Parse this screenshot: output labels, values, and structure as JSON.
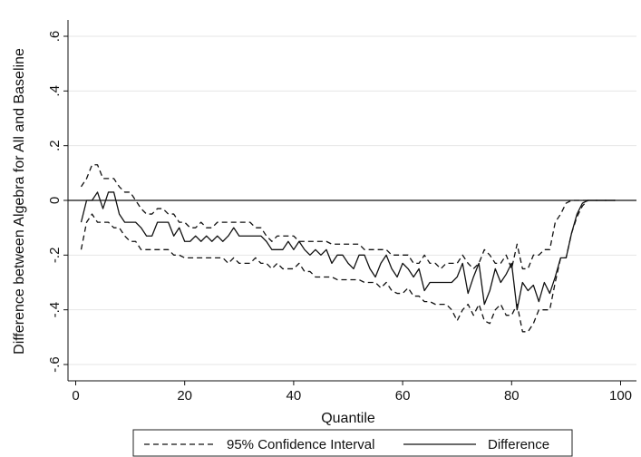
{
  "chart_data": {
    "type": "line",
    "xlabel": "Quantile",
    "ylabel": "Difference between Algebra for All and Baseline",
    "xlim": [
      0,
      100
    ],
    "ylim": [
      -0.6,
      0.6
    ],
    "x_ticks": [
      0,
      20,
      40,
      60,
      80,
      100
    ],
    "x_tick_labels": [
      "0",
      "20",
      "40",
      "60",
      "80",
      "100"
    ],
    "y_ticks": [
      -0.6,
      -0.4,
      -0.2,
      0,
      0.2,
      0.4,
      0.6
    ],
    "y_tick_labels": [
      "-.6",
      "-.4",
      "-.2",
      "0",
      ".2",
      ".4",
      ".6"
    ],
    "grid": true,
    "reference_line_y": 0,
    "legend_position": "bottom",
    "x": [
      1,
      2,
      3,
      4,
      5,
      6,
      7,
      8,
      9,
      10,
      11,
      12,
      13,
      14,
      15,
      16,
      17,
      18,
      19,
      20,
      21,
      22,
      23,
      24,
      25,
      26,
      27,
      28,
      29,
      30,
      31,
      32,
      33,
      34,
      35,
      36,
      37,
      38,
      39,
      40,
      41,
      42,
      43,
      44,
      45,
      46,
      47,
      48,
      49,
      50,
      51,
      52,
      53,
      54,
      55,
      56,
      57,
      58,
      59,
      60,
      61,
      62,
      63,
      64,
      65,
      66,
      67,
      68,
      69,
      70,
      71,
      72,
      73,
      74,
      75,
      76,
      77,
      78,
      79,
      80,
      81,
      82,
      83,
      84,
      85,
      86,
      87,
      88,
      89,
      90,
      91,
      92,
      93,
      94,
      95,
      96,
      97,
      98,
      99
    ],
    "series": [
      {
        "name": "Difference",
        "style": "solid",
        "values": [
          -0.08,
          0.0,
          0.0,
          0.03,
          -0.03,
          0.03,
          0.03,
          -0.05,
          -0.08,
          -0.08,
          -0.08,
          -0.1,
          -0.13,
          -0.13,
          -0.08,
          -0.08,
          -0.08,
          -0.13,
          -0.1,
          -0.15,
          -0.15,
          -0.13,
          -0.15,
          -0.13,
          -0.15,
          -0.13,
          -0.15,
          -0.13,
          -0.1,
          -0.13,
          -0.13,
          -0.13,
          -0.13,
          -0.13,
          -0.15,
          -0.18,
          -0.18,
          -0.18,
          -0.15,
          -0.18,
          -0.15,
          -0.18,
          -0.2,
          -0.18,
          -0.2,
          -0.18,
          -0.23,
          -0.2,
          -0.2,
          -0.23,
          -0.25,
          -0.2,
          -0.2,
          -0.25,
          -0.28,
          -0.23,
          -0.2,
          -0.25,
          -0.28,
          -0.23,
          -0.25,
          -0.28,
          -0.25,
          -0.33,
          -0.3,
          -0.3,
          -0.3,
          -0.3,
          -0.3,
          -0.28,
          -0.23,
          -0.34,
          -0.28,
          -0.23,
          -0.38,
          -0.33,
          -0.25,
          -0.3,
          -0.27,
          -0.23,
          -0.4,
          -0.3,
          -0.33,
          -0.31,
          -0.37,
          -0.3,
          -0.34,
          -0.28,
          -0.21,
          -0.21,
          -0.12,
          -0.05,
          -0.01,
          0.0,
          0.0,
          0.0,
          0.0,
          0.0,
          0.0
        ]
      },
      {
        "name": "95% Confidence Interval",
        "style": "dashed",
        "values": [
          0.05,
          0.08,
          0.13,
          0.13,
          0.08,
          0.08,
          0.08,
          0.05,
          0.03,
          0.03,
          0.0,
          -0.03,
          -0.05,
          -0.05,
          -0.03,
          -0.03,
          -0.05,
          -0.05,
          -0.08,
          -0.08,
          -0.1,
          -0.1,
          -0.08,
          -0.1,
          -0.1,
          -0.08,
          -0.08,
          -0.08,
          -0.08,
          -0.08,
          -0.08,
          -0.08,
          -0.1,
          -0.1,
          -0.13,
          -0.15,
          -0.13,
          -0.13,
          -0.13,
          -0.13,
          -0.15,
          -0.15,
          -0.15,
          -0.15,
          -0.15,
          -0.15,
          -0.16,
          -0.16,
          -0.16,
          -0.16,
          -0.16,
          -0.16,
          -0.18,
          -0.18,
          -0.18,
          -0.18,
          -0.18,
          -0.2,
          -0.2,
          -0.2,
          -0.2,
          -0.23,
          -0.23,
          -0.2,
          -0.23,
          -0.23,
          -0.25,
          -0.23,
          -0.23,
          -0.23,
          -0.2,
          -0.23,
          -0.25,
          -0.23,
          -0.18,
          -0.2,
          -0.23,
          -0.23,
          -0.2,
          -0.25,
          -0.16,
          -0.25,
          -0.25,
          -0.2,
          -0.2,
          -0.18,
          -0.18,
          -0.08,
          -0.05,
          -0.01,
          0.0,
          0.0,
          0.0,
          0.0,
          0.0,
          0.0,
          0.0,
          0.0,
          0.0
        ]
      },
      {
        "name": "95% Confidence Interval",
        "style": "dashed",
        "values": [
          -0.18,
          -0.08,
          -0.05,
          -0.08,
          -0.08,
          -0.08,
          -0.1,
          -0.1,
          -0.13,
          -0.15,
          -0.15,
          -0.18,
          -0.18,
          -0.18,
          -0.18,
          -0.18,
          -0.18,
          -0.2,
          -0.2,
          -0.21,
          -0.21,
          -0.21,
          -0.21,
          -0.21,
          -0.21,
          -0.21,
          -0.21,
          -0.23,
          -0.21,
          -0.23,
          -0.23,
          -0.23,
          -0.21,
          -0.23,
          -0.23,
          -0.25,
          -0.23,
          -0.25,
          -0.25,
          -0.25,
          -0.23,
          -0.26,
          -0.26,
          -0.28,
          -0.28,
          -0.28,
          -0.28,
          -0.29,
          -0.29,
          -0.29,
          -0.29,
          -0.29,
          -0.3,
          -0.3,
          -0.3,
          -0.32,
          -0.3,
          -0.33,
          -0.34,
          -0.34,
          -0.32,
          -0.35,
          -0.35,
          -0.37,
          -0.37,
          -0.38,
          -0.38,
          -0.38,
          -0.4,
          -0.44,
          -0.4,
          -0.38,
          -0.42,
          -0.38,
          -0.44,
          -0.45,
          -0.4,
          -0.38,
          -0.42,
          -0.42,
          -0.38,
          -0.48,
          -0.48,
          -0.45,
          -0.4,
          -0.4,
          -0.4,
          -0.3,
          -0.21,
          -0.21,
          -0.12,
          -0.06,
          -0.02,
          0.0,
          0.0,
          0.0,
          0.0,
          0.0,
          0.0
        ]
      }
    ],
    "legend": [
      {
        "label": "95% Confidence Interval",
        "style": "dashed"
      },
      {
        "label": "Difference",
        "style": "solid"
      }
    ]
  }
}
